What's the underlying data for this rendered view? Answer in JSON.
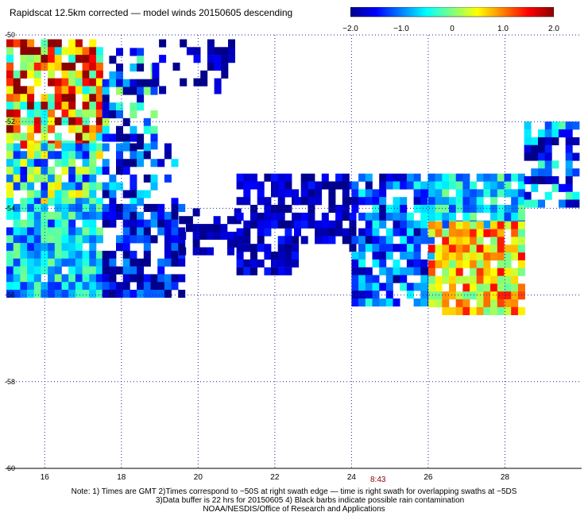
{
  "title": "Rapidscat 12.5km corrected — model winds 20150605 descending",
  "colorbar": {
    "tick_labels": [
      "−2.0",
      "−1.0",
      "0",
      "1.0",
      "2.0"
    ],
    "tick_values": [
      -2.0,
      -1.0,
      0,
      1.0,
      2.0
    ],
    "colors": [
      "#00008b",
      "#0000ff",
      "#0080ff",
      "#00ffff",
      "#80ff80",
      "#ffff00",
      "#ff8000",
      "#ff0000",
      "#8b0000"
    ]
  },
  "chart_data": {
    "type": "heatmap",
    "title": "Rapidscat 12.5km corrected — model winds 20150605 descending",
    "x_ticks": [
      16,
      18,
      20,
      22,
      24,
      26,
      28
    ],
    "y_ticks": [
      -50,
      -52,
      -54,
      -56,
      -58,
      -60
    ],
    "x_tick_labels": [
      "16",
      "18",
      "20",
      "22",
      "24",
      "26",
      "28"
    ],
    "y_tick_labels": [
      "-50",
      "-52",
      "-54",
      "-56",
      "-58",
      "-60"
    ],
    "xlim": [
      15,
      30
    ],
    "ylim": [
      -60,
      -50
    ],
    "grid": true,
    "value_range": [
      -2.0,
      2.0
    ],
    "regions": [
      {
        "lon": [
          15.0,
          17.5
        ],
        "lat": [
          -50.1,
          -52.5
        ],
        "mean": 0.9,
        "spread": 1.1,
        "density": 0.8
      },
      {
        "lon": [
          17.5,
          18.8
        ],
        "lat": [
          -50.3,
          -52.5
        ],
        "mean": -1.0,
        "spread": 0.9,
        "density": 0.55
      },
      {
        "lon": [
          18.8,
          20.8
        ],
        "lat": [
          -50.1,
          -51.2
        ],
        "mean": -1.9,
        "spread": 0.3,
        "density": 0.35
      },
      {
        "lon": [
          15.0,
          17.5
        ],
        "lat": [
          -52.5,
          -53.9
        ],
        "mean": -0.4,
        "spread": 0.8,
        "density": 0.9
      },
      {
        "lon": [
          17.5,
          19.3
        ],
        "lat": [
          -52.5,
          -53.9
        ],
        "mean": -1.4,
        "spread": 0.7,
        "density": 0.55
      },
      {
        "lon": [
          15.0,
          17.5
        ],
        "lat": [
          -53.9,
          -56.0
        ],
        "mean": -0.7,
        "spread": 0.5,
        "density": 0.95
      },
      {
        "lon": [
          17.5,
          19.5
        ],
        "lat": [
          -53.9,
          -56.0
        ],
        "mean": -1.6,
        "spread": 0.5,
        "density": 0.7
      },
      {
        "lon": [
          19.5,
          21.0
        ],
        "lat": [
          -54.0,
          -55.0
        ],
        "mean": -1.9,
        "spread": 0.2,
        "density": 0.6
      },
      {
        "lon": [
          21.0,
          22.5
        ],
        "lat": [
          -53.2,
          -55.4
        ],
        "mean": -1.8,
        "spread": 0.3,
        "density": 0.75
      },
      {
        "lon": [
          22.5,
          24.0
        ],
        "lat": [
          -53.2,
          -55.0
        ],
        "mean": -1.8,
        "spread": 0.3,
        "density": 0.55
      },
      {
        "lon": [
          24.0,
          26.0
        ],
        "lat": [
          -53.2,
          -56.2
        ],
        "mean": -1.2,
        "spread": 0.6,
        "density": 0.8
      },
      {
        "lon": [
          26.0,
          28.5
        ],
        "lat": [
          -53.2,
          -54.3
        ],
        "mean": -0.6,
        "spread": 0.5,
        "density": 0.85
      },
      {
        "lon": [
          26.0,
          28.5
        ],
        "lat": [
          -54.3,
          -56.3
        ],
        "mean": 0.7,
        "spread": 0.6,
        "density": 0.9
      },
      {
        "lon": [
          28.5,
          29.8
        ],
        "lat": [
          -52.0,
          -53.9
        ],
        "mean": -1.1,
        "spread": 0.7,
        "density": 0.7
      }
    ]
  },
  "time_label": "8:43",
  "notes": [
    "Note: 1) Times are GMT 2)Times correspond to −50S at right swath edge — time is right swath for overlapping swaths at −5DS",
    "3)Data buffer is 22 hrs for 20150605 4) Black barbs indicate possible rain contamination",
    "NOAA/NESDIS/Office of Research and Applications"
  ]
}
